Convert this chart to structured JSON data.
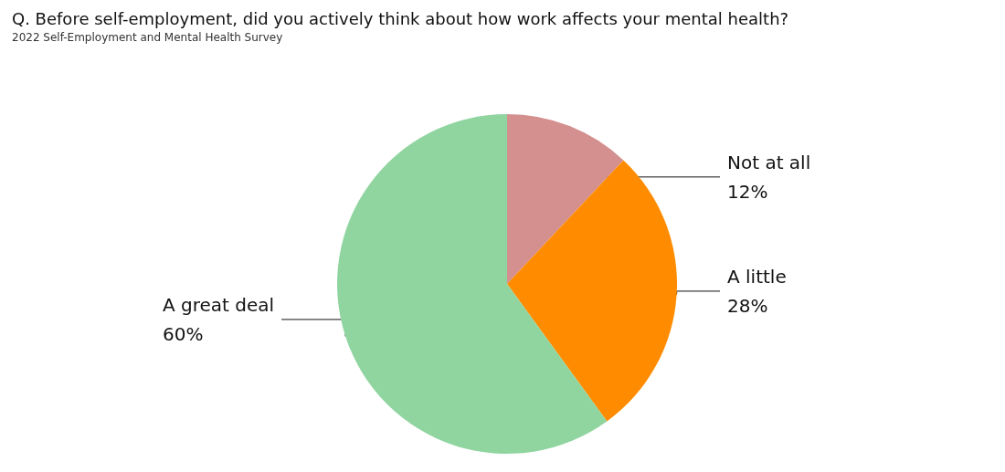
{
  "chart_data": {
    "type": "pie",
    "title": "Q. Before self-employment, did you actively think about how work affects your mental health?",
    "subtitle": "2022 Self-Employment and Mental Health Survey",
    "categories": [
      "Not at all",
      "A little",
      "A great deal"
    ],
    "values": [
      12,
      28,
      60
    ],
    "colors": [
      "#d48f8f",
      "#ff8c00",
      "#90d5a0"
    ],
    "value_labels": [
      "12%",
      "28%",
      "60%"
    ],
    "legend": false
  }
}
